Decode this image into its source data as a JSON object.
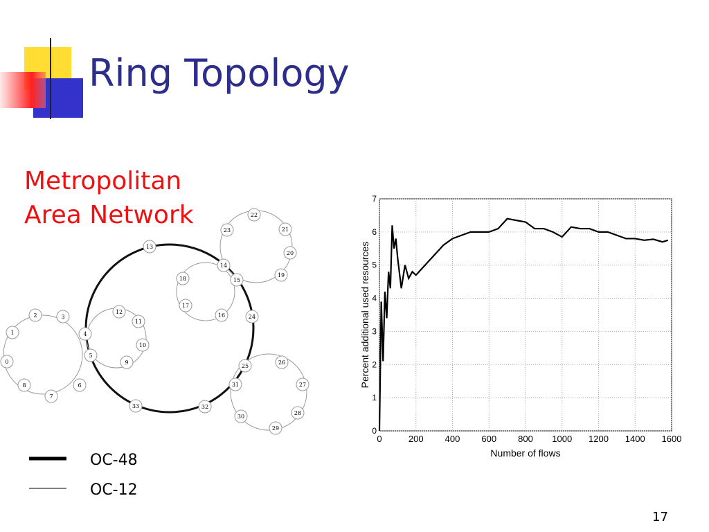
{
  "header": {
    "title": "Ring Topology"
  },
  "subtitle": [
    "Metropolitan",
    "Area Network"
  ],
  "diagram": {
    "nodes": [
      "0",
      "1",
      "2",
      "3",
      "4",
      "5",
      "6",
      "7",
      "8",
      "9",
      "10",
      "11",
      "12",
      "13",
      "14",
      "15",
      "16",
      "17",
      "18",
      "19",
      "20",
      "21",
      "22",
      "23",
      "24",
      "25",
      "26",
      "27",
      "28",
      "29",
      "30",
      "31",
      "32",
      "33"
    ]
  },
  "legend": [
    "OC-48",
    "OC-12"
  ],
  "chart_data": {
    "type": "line",
    "x_label": "Number of flows",
    "y_label": "Percent additional used resources",
    "x": [
      0,
      10,
      20,
      30,
      40,
      50,
      60,
      70,
      80,
      90,
      100,
      120,
      140,
      160,
      180,
      200,
      250,
      300,
      350,
      400,
      450,
      500,
      550,
      600,
      650,
      700,
      750,
      800,
      850,
      900,
      950,
      1000,
      1050,
      1100,
      1150,
      1200,
      1250,
      1300,
      1350,
      1400,
      1450,
      1500,
      1550,
      1580
    ],
    "values": [
      0,
      3.9,
      2.1,
      4.2,
      3.4,
      4.8,
      4.3,
      6.2,
      5.5,
      5.8,
      5.2,
      4.3,
      5.0,
      4.6,
      4.8,
      4.7,
      5.0,
      5.3,
      5.6,
      5.8,
      5.9,
      6.0,
      6.0,
      6.0,
      6.1,
      6.4,
      6.35,
      6.3,
      6.1,
      6.1,
      6.0,
      5.85,
      6.15,
      6.1,
      6.1,
      6.0,
      6.0,
      5.9,
      5.8,
      5.8,
      5.75,
      5.78,
      5.7,
      5.75
    ],
    "color": "#000000",
    "xlim": [
      0,
      1600
    ],
    "ylim": [
      0,
      7
    ],
    "xticks": [
      0,
      200,
      400,
      600,
      800,
      1000,
      1200,
      1400,
      1600
    ],
    "yticks": [
      0,
      1,
      2,
      3,
      4,
      5,
      6,
      7
    ],
    "grid": true
  },
  "page_number": "17"
}
